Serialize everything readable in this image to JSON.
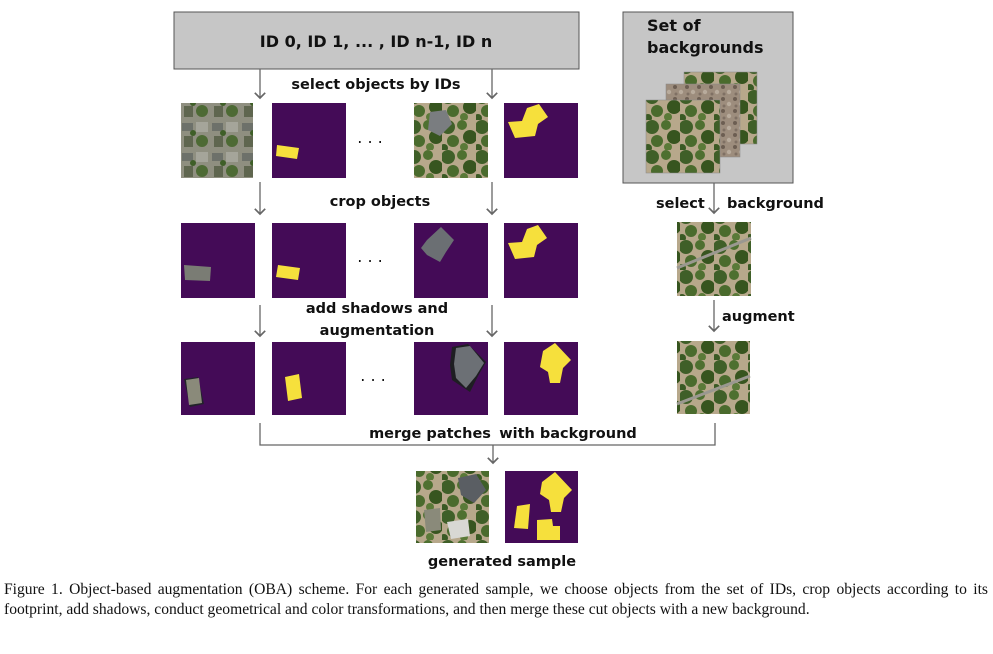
{
  "id_box_label": "ID 0, ID 1, ... , ID n-1, ID n",
  "backgrounds_box_label": [
    "Set of",
    "backgrounds"
  ],
  "steps": {
    "select": "select objects by IDs",
    "crop": "crop objects",
    "shadows": [
      "add shadows and",
      "augmentation"
    ],
    "merge_left": "merge patches",
    "merge_right": "with background",
    "generated": "generated sample",
    "select_bg_left": "select",
    "select_bg_right": "background",
    "augment": "augment"
  },
  "ellipsis": ". . .",
  "caption": "Figure 1. Object-based augmentation (OBA) scheme. For each generated sample, we choose objects from the set of IDs, crop objects according to its footprint, add shadows, conduct geometrical and color transformations, and then merge these cut objects with a new background.",
  "colors": {
    "mask_bg": "#440b57",
    "mask_fg": "#f6e03c",
    "box_fill": "#c6c6c6",
    "arrow": "#666666",
    "forest": "#4a6b2d",
    "ground": "#b9a78a"
  }
}
